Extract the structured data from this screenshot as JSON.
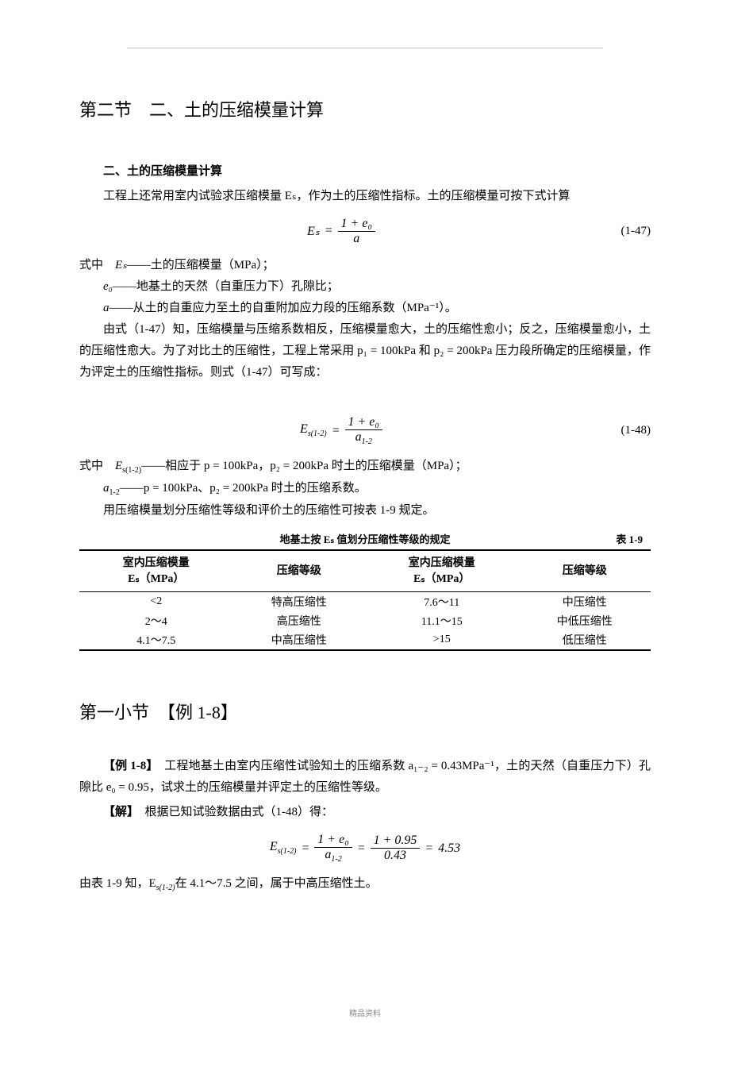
{
  "section": {
    "title": "第二节　二、土的压缩模量计算",
    "heading2": "二、土的压缩模量计算",
    "intro": "工程上还常用室内试验求压缩模量 Eₛ，作为土的压缩性指标。土的压缩模量可按下式计算",
    "formula1": {
      "lhs": "Eₛ",
      "num": "1 + e₀",
      "den": "a",
      "label": "(1-47)"
    },
    "defs_label": "式中",
    "defs": [
      {
        "sym": "Eₛ",
        "text": "——土的压缩模量（MPa）；"
      },
      {
        "sym": "e₀",
        "text": "——地基土的天然（自重压力下）孔隙比；"
      },
      {
        "sym": "a",
        "text": "——从土的自重应力至土的自重附加应力段的压缩系数（MPa⁻¹）。"
      }
    ],
    "para2": "由式（1-47）知，压缩模量与压缩系数相反，压缩模量愈大，土的压缩性愈小；反之，压缩模量愈小，土的压缩性愈大。为了对比土的压缩性，工程上常采用 p₁ = 100kPa 和 p₂ = 200kPa 压力段所确定的压缩模量，作为评定土的压缩性指标。则式（1-47）可写成：",
    "formula2": {
      "lhs": "E",
      "lhs_sub": "s(1-2)",
      "num": "1 + e₀",
      "den": "a",
      "den_sub": "1-2",
      "label": "(1-48)"
    },
    "defs2_label": "式中",
    "defs2": [
      {
        "sym": "E",
        "sub": "s(1-2)",
        "text": "——相应于 p = 100kPa，p₂ = 200kPa 时土的压缩模量（MPa）；"
      },
      {
        "sym": "a",
        "sub": "1-2",
        "text": "——p = 100kPa、p₂ = 200kPa 时土的压缩系数。"
      }
    ],
    "para3": "用压缩模量划分压缩性等级和评价土的压缩性可按表 1-9 规定。"
  },
  "table": {
    "title": "地基土按 Eₛ 值划分压缩性等级的规定",
    "table_num": "表 1-9",
    "headers": [
      "室内压缩模量\nEₛ（MPa）",
      "压缩等级",
      "室内压缩模量\nEₛ（MPa）",
      "压缩等级"
    ],
    "rows": [
      [
        "<2",
        "特高压缩性",
        "7.6～11",
        "中压缩性"
      ],
      [
        "2～4",
        "高压缩性",
        "11.1～15",
        "中低压缩性"
      ],
      [
        "4.1～7.5",
        "中高压缩性",
        ">15",
        "低压缩性"
      ]
    ]
  },
  "subsec": {
    "title": "第一小节　【例 1-8】",
    "example_label": "【例 1-8】",
    "example_text": "　工程地基土由室内压缩性试验知土的压缩系数 a₁₋₂ = 0.43MPa⁻¹，土的天然（自重压力下）孔隙比 e₀ = 0.95，试求土的压缩模量并评定土的压缩性等级。",
    "solve_label": "【解】",
    "solve_text": "　根据已知试验数据由式（1-48）得：",
    "formula3": {
      "lhs": "E",
      "lhs_sub": "s(1-2)",
      "num1": "1 + e₀",
      "den1": "a",
      "den1_sub": "1-2",
      "num2": "1 + 0.95",
      "den2": "0.43",
      "result": "4.53"
    },
    "conclusion": "由表 1-9 知，E",
    "conclusion_sub": "s(1-2)",
    "conclusion2": "在 4.1～7.5 之间，属于中高压缩性土。"
  },
  "footer": "精品资料"
}
